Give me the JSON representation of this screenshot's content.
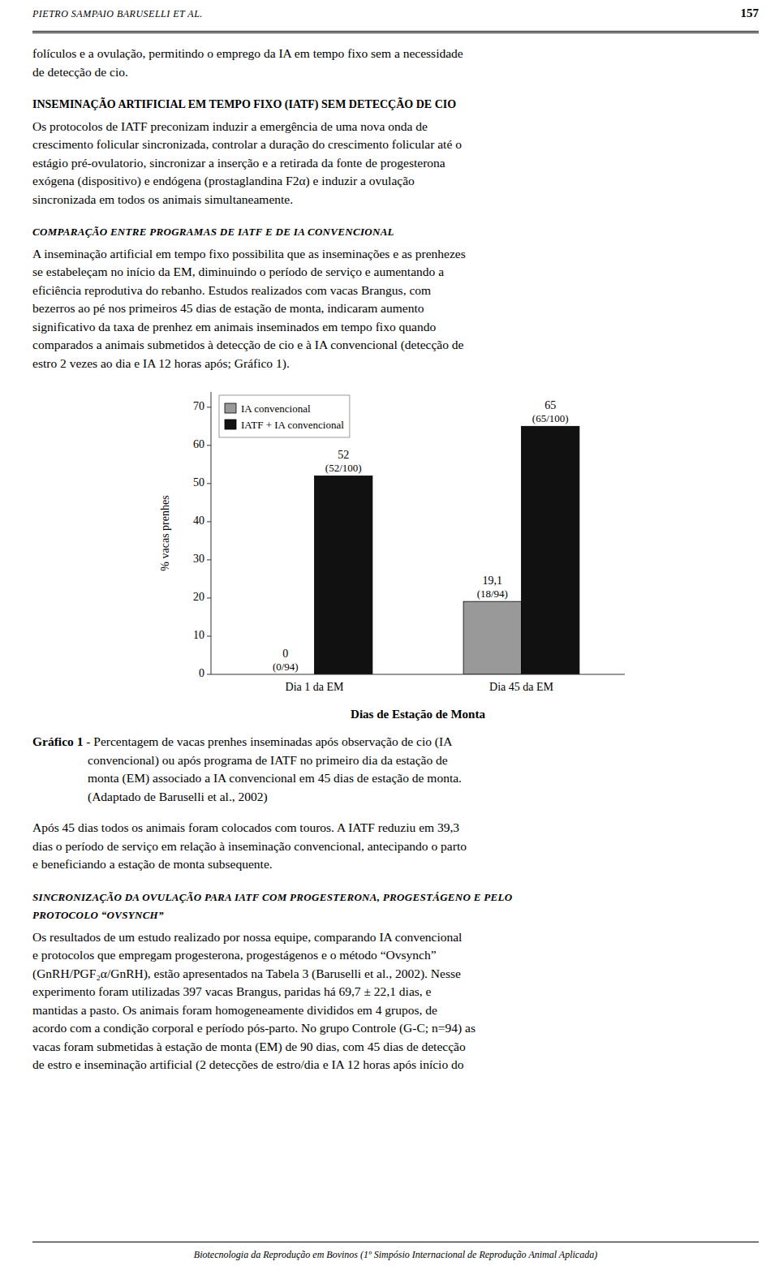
{
  "header_left": "PIETRO SAMPAIO BARUSELLI ET AL.",
  "header_right": "157",
  "text_before": [
    {
      "kind": "paragraph",
      "lines": [
        "folículos e a ovulação, permitindo o emprego da IA em tempo fixo sem a necessidade",
        "de detecção de cio."
      ]
    },
    {
      "kind": "heading",
      "lines": [
        "INSEMINAÇÃO ARTIFICIAL EM TEMPO FIXO (IATF) SEM DETECÇÃO DE CIO"
      ]
    },
    {
      "kind": "paragraph",
      "lines": [
        "Os protocolos de IATF preconizam induzir a emergência de uma nova onda de",
        "crescimento folicular sincronizada, controlar a duração do crescimento folicular até o",
        "estágio pré-ovulatorio, sincronizar a inserção e a retirada da fonte de progesterona",
        "exógena (dispositivo) e endógena (prostaglandina F2α) e induzir a ovulação",
        "sincronizada em todos os animais simultaneamente."
      ]
    },
    {
      "kind": "subheading",
      "lines": [
        "COMPARAÇÃO ENTRE PROGRAMAS DE IATF E DE IA CONVENCIONAL"
      ]
    },
    {
      "kind": "paragraph",
      "lines": [
        "A inseminação artificial em tempo fixo possibilita que as inseminações e as prenhezes",
        "se estabeleçam no início da EM, diminuindo o período de serviço e aumentando a",
        "eficiência reprodutiva do rebanho. Estudos realizados com vacas Brangus, com",
        "bezerros ao pé nos primeiros 45 dias de estação de monta, indicaram aumento",
        "significativo da taxa de prenhez em animais inseminados em tempo fixo quando",
        "comparados a animais submetidos à detecção de cio e à IA convencional (detecção de",
        "estro 2 vezes ao dia e IA 12 horas após; Gráfico 1)."
      ]
    }
  ],
  "caption": {
    "label": "Gráfico 1",
    "lines": [
      " - Percentagem de vacas prenhes inseminadas após observação de cio (IA",
      "convencional) ou após programa de IATF no primeiro dia da estação de",
      "monta (EM) associado a IA convencional em 45 dias de estação de monta.",
      "(Adaptado de Baruselli et al., 2002)"
    ]
  },
  "text_after": [
    {
      "kind": "paragraph",
      "lines": [
        "Após 45 dias todos os animais foram colocados com touros. A IATF reduziu  em 39,3",
        "dias o período de serviço em relação à inseminação convencional, antecipando o parto",
        "e beneficiando a estação de monta subsequente."
      ]
    },
    {
      "kind": "subheading",
      "lines": [
        "SINCRONIZAÇÃO DA OVULAÇÃO PARA IATF COM PROGESTERONA, PROGESTÁGENO E PELO",
        "PROTOCOLO “OVSYNCH”"
      ]
    },
    {
      "kind": "paragraph",
      "lines": [
        "Os resultados de um estudo realizado por nossa equipe, comparando IA convencional",
        "e protocolos que empregam progesterona, progestágenos e o método “Ovsynch”",
        "(GnRH/PGF₂α/GnRH), estão apresentados na Tabela 3 (Baruselli et al., 2002). Nesse",
        "experimento foram utilizadas 397 vacas Brangus, paridas há 69,7 ± 22,1 dias, e",
        "mantidas a pasto. Os animais foram homogeneamente divididos em 4 grupos, de",
        "acordo com a condição corporal e período pós-parto. No grupo Controle (G-C; n=94) as",
        "vacas foram submetidas à estação de monta (EM) de 90 dias, com 45 dias de detecção",
        "de estro e inseminação artificial (2 detecções de estro/dia e IA 12 horas após início do"
      ]
    }
  ],
  "footer_text": "Biotecnologia da Reprodução em Bovinos (1º Simpósio Internacional de Reprodução Animal Aplicada)",
  "chart_data": {
    "type": "bar",
    "categories": [
      "Dia 1 da EM",
      "Dia 45 da EM"
    ],
    "series": [
      {
        "name": "IA convencional",
        "color": "#999999",
        "values": [
          0,
          19.1
        ],
        "value_labels": [
          "0",
          "19,1"
        ],
        "annotations": [
          "(0/94)",
          "(18/94)"
        ]
      },
      {
        "name": "IATF + IA convencional",
        "color": "#111111",
        "values": [
          52,
          65
        ],
        "value_labels": [
          "52",
          "65"
        ],
        "annotations": [
          "(52/100)",
          "(65/100)"
        ]
      }
    ],
    "xlabel": "Dias de Estação de Monta",
    "ylabel": "% vacas prenhes",
    "ylim": [
      0,
      74
    ],
    "yticks": [
      0,
      10,
      20,
      30,
      40,
      50,
      60,
      70
    ],
    "legend": "upper left",
    "data_labels": true,
    "grid": false
  }
}
